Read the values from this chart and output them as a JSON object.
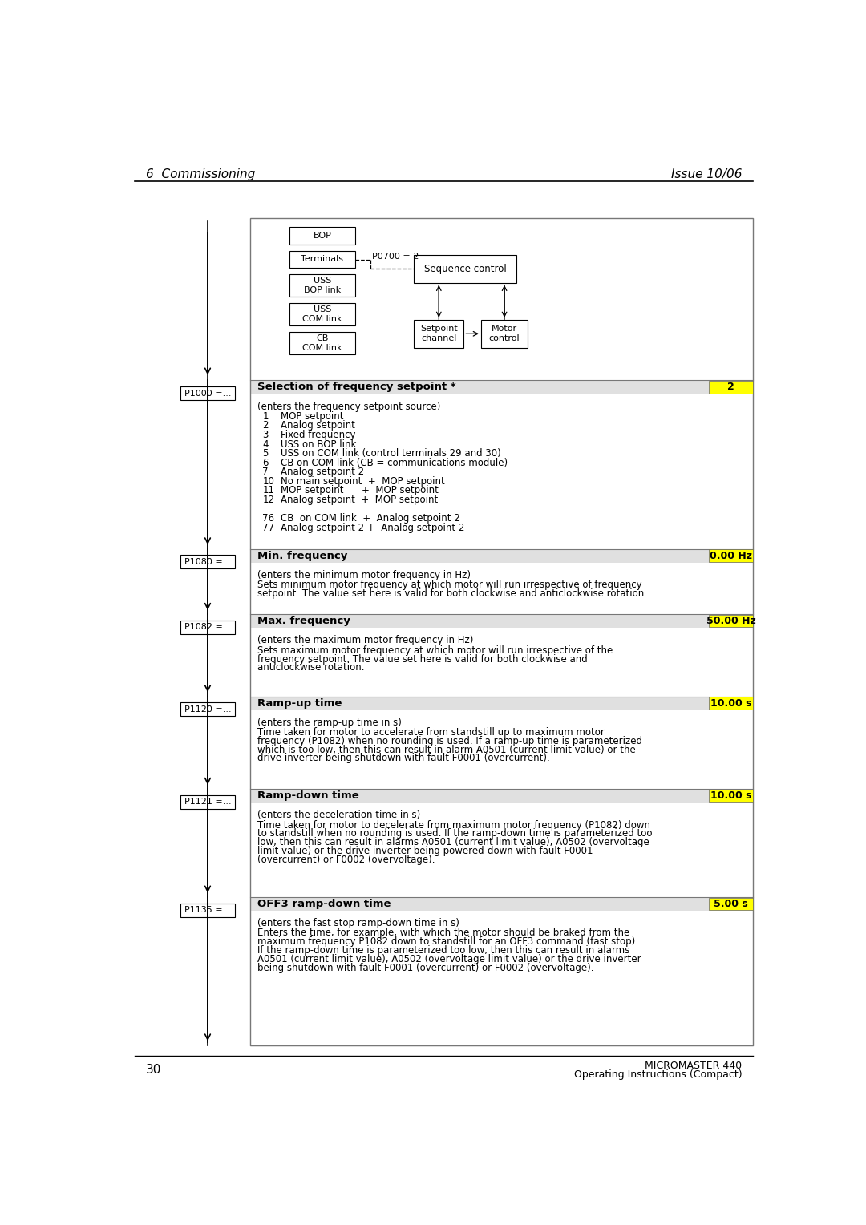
{
  "page_title_left": "6  Commissioning",
  "page_title_right": "Issue 10/06",
  "page_num_left": "30",
  "page_num_right_line1": "MICROMASTER 440",
  "page_num_right_line2": "Operating Instructions (Compact)",
  "bg_color": "#ffffff",
  "yellow_color": "#ffff00",
  "diagram_boxes": [
    "BOP",
    "Terminals",
    "USS\nBOP link",
    "USS\nCOM link",
    "CB\nCOM link"
  ],
  "p0700_label": "P0700 = 2",
  "params": [
    {
      "id": "P1000 =...",
      "title": "Selection of frequency setpoint *",
      "badge": "2",
      "badge_color": "#ffff00",
      "subtitle": "(enters the frequency setpoint source)",
      "items": [
        [
          "1",
          "MOP setpoint"
        ],
        [
          "2",
          "Analog setpoint"
        ],
        [
          "3",
          "Fixed frequency"
        ],
        [
          "4",
          "USS on BOP link"
        ],
        [
          "5",
          "USS on COM link (control terminals 29 and 30)"
        ],
        [
          "6",
          "CB on COM link (CB = communications module)"
        ],
        [
          "7",
          "Analog setpoint 2"
        ],
        [
          "10",
          "No main setpoint  +  MOP setpoint"
        ],
        [
          "11",
          "MOP setpoint      +  MOP setpoint"
        ],
        [
          "12",
          "Analog setpoint  +  MOP setpoint"
        ],
        [
          ":",
          ""
        ],
        [
          "76",
          "CB  on COM link  +  Analog setpoint 2"
        ],
        [
          "77",
          "Analog setpoint 2 +  Analog setpoint 2"
        ]
      ]
    },
    {
      "id": "P1080 =...",
      "title": "Min. frequency",
      "badge": "0.00 Hz",
      "badge_color": "#ffff00",
      "subtitle": "(enters the minimum motor frequency in Hz)",
      "body": "Sets minimum motor frequency at which motor will run irrespective of frequency\nsetpoint. The value set here is valid for both clockwise and anticlockwise rotation."
    },
    {
      "id": "P1082 =...",
      "title": "Max. frequency",
      "badge": "50.00 Hz",
      "badge_color": "#ffff00",
      "subtitle": "(enters the maximum motor frequency in Hz)",
      "body": "Sets maximum motor frequency at which motor will run irrespective of the\nfrequency setpoint. The value set here is valid for both clockwise and\nanticlockwise rotation."
    },
    {
      "id": "P1120 =...",
      "title": "Ramp-up time",
      "badge": "10.00 s",
      "badge_color": "#ffff00",
      "subtitle": "(enters the ramp-up time in s)",
      "body": "Time taken for motor to accelerate from standstill up to maximum motor\nfrequency (P1082) when no rounding is used. If a ramp-up time is parameterized\nwhich is too low, then this can result in alarm A0501 (current limit value) or the\ndrive inverter being shutdown with fault F0001 (overcurrent)."
    },
    {
      "id": "P1121 =...",
      "title": "Ramp-down time",
      "badge": "10.00 s",
      "badge_color": "#ffff00",
      "subtitle": "(enters the deceleration time in s)",
      "body": "Time taken for motor to decelerate from maximum motor frequency (P1082) down\nto standstill when no rounding is used. If the ramp-down time is parameterized too\nlow, then this can result in alarms A0501 (current limit value), A0502 (overvoltage\nlimit value) or the drive inverter being powered-down with fault F0001\n(overcurrent) or F0002 (overvoltage)."
    },
    {
      "id": "P1135 =...",
      "title": "OFF3 ramp-down time",
      "badge": "5.00 s",
      "badge_color": "#ffff00",
      "subtitle": "(enters the fast stop ramp-down time in s)",
      "body": "Enters the time, for example, with which the motor should be braked from the\nmaximum frequency P1082 down to standstill for an OFF3 command (fast stop).\nIf the ramp-down time is parameterized too low, then this can result in alarms\nA0501 (current limit value), A0502 (overvoltage limit value) or the drive inverter\nbeing shutdown with fault F0001 (overcurrent) or F0002 (overvoltage)."
    }
  ]
}
